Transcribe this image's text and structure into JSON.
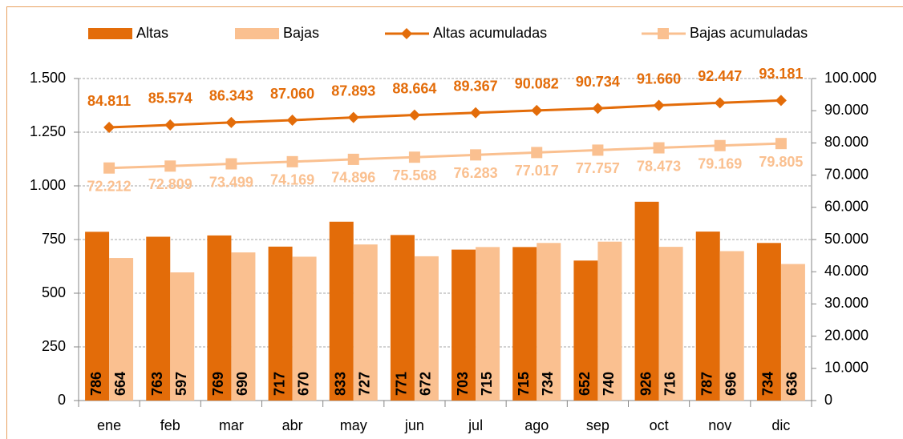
{
  "chart_data": {
    "type": "bar",
    "categories": [
      "ene",
      "feb",
      "mar",
      "abr",
      "may",
      "jun",
      "jul",
      "ago",
      "sep",
      "oct",
      "nov",
      "dic"
    ],
    "series": [
      {
        "name": "Altas",
        "type": "bar",
        "color": "#E36C09",
        "values": [
          786,
          763,
          769,
          717,
          833,
          771,
          703,
          715,
          652,
          926,
          787,
          734
        ]
      },
      {
        "name": "Bajas",
        "type": "bar",
        "color": "#FAC090",
        "values": [
          664,
          597,
          690,
          670,
          727,
          672,
          715,
          734,
          740,
          716,
          696,
          636
        ]
      },
      {
        "name": "Altas acumuladas",
        "type": "line",
        "axis": "y2",
        "color": "#E36C09",
        "marker": "diamond",
        "label_position": "above",
        "values": [
          84811,
          85574,
          86343,
          87060,
          87893,
          88664,
          89367,
          90082,
          90734,
          91660,
          92447,
          93181
        ],
        "value_labels": [
          "84.811",
          "85.574",
          "86.343",
          "87.060",
          "87.893",
          "88.664",
          "89.367",
          "90.082",
          "90.734",
          "91.660",
          "92.447",
          "93.181"
        ]
      },
      {
        "name": "Bajas acumuladas",
        "type": "line",
        "axis": "y2",
        "color": "#FAC090",
        "marker": "square",
        "label_position": "below",
        "values": [
          72212,
          72809,
          73499,
          74169,
          74896,
          75568,
          76283,
          77017,
          77757,
          78473,
          79169,
          79805
        ],
        "value_labels": [
          "72.212",
          "72.809",
          "73.499",
          "74.169",
          "74.896",
          "75.568",
          "76.283",
          "77.017",
          "77.757",
          "78.473",
          "79.169",
          "79.805"
        ]
      }
    ],
    "ylim": [
      0,
      1500
    ],
    "yticks": [
      0,
      250,
      500,
      750,
      {
        "value": 1000,
        "label": "1.000"
      },
      {
        "value": 1250,
        "label": "1.250"
      },
      {
        "value": 1500,
        "label": "1.500"
      }
    ],
    "y2lim": [
      0,
      100000
    ],
    "y2ticks": [
      0,
      {
        "value": 10000,
        "label": "10.000"
      },
      {
        "value": 20000,
        "label": "20.000"
      },
      {
        "value": 30000,
        "label": "30.000"
      },
      {
        "value": 40000,
        "label": "40.000"
      },
      {
        "value": 50000,
        "label": "50.000"
      },
      {
        "value": 60000,
        "label": "60.000"
      },
      {
        "value": 70000,
        "label": "70.000"
      },
      {
        "value": 80000,
        "label": "80.000"
      },
      {
        "value": 90000,
        "label": "90.000"
      },
      {
        "value": 100000,
        "label": "100.000"
      }
    ],
    "grid": true,
    "legend": "top"
  }
}
